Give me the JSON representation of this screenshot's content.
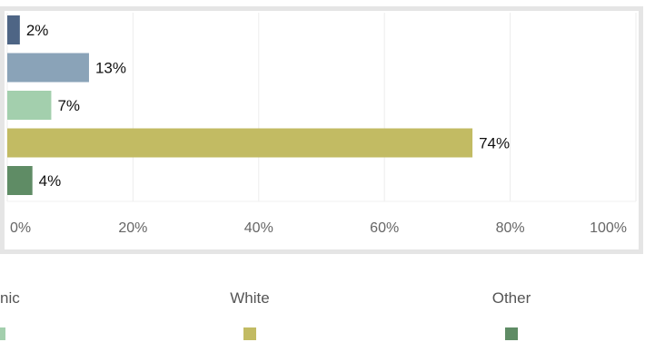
{
  "chart_data": {
    "type": "bar",
    "orientation": "horizontal",
    "categories": [
      "",
      "",
      "",
      "",
      ""
    ],
    "values": [
      2,
      13,
      7,
      74,
      4
    ],
    "value_labels": [
      "2%",
      "13%",
      "7%",
      "74%",
      "4%"
    ],
    "colors": [
      "#4e6585",
      "#8aa3b8",
      "#a3cfad",
      "#c2bb63",
      "#5f8c65"
    ],
    "xlim": [
      0,
      100
    ],
    "xticks": [
      0,
      20,
      40,
      60,
      80,
      100
    ],
    "xtick_labels": [
      "0%",
      "20%",
      "40%",
      "60%",
      "80%",
      "100%"
    ],
    "grid": true,
    "legend": {
      "placement": "bottom",
      "items": [
        {
          "label": "nic",
          "color": "#a3cfad"
        },
        {
          "label": "White",
          "color": "#c2bb63"
        },
        {
          "label": "Other",
          "color": "#5f8c65"
        }
      ]
    },
    "title": "",
    "xlabel": "",
    "ylabel": ""
  }
}
